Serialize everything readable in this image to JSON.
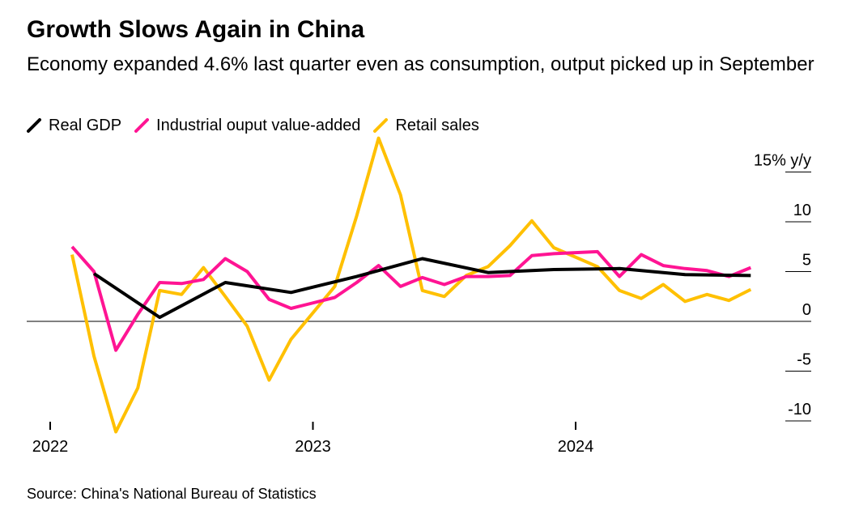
{
  "title": "Growth Slows Again in China",
  "subtitle": "Economy expanded 4.6% last quarter even as consumption, output picked up in September",
  "source": "Source: China's National Bureau of Statistics",
  "colors": {
    "real_gdp": "#000000",
    "industrial": "#ff1493",
    "retail": "#ffc000",
    "axis": "#000000"
  },
  "chart_data": {
    "type": "line",
    "ylim": [
      -10,
      15
    ],
    "ytick_labels": [
      "15% y/y",
      "10",
      "5",
      "0",
      "-5",
      "-10"
    ],
    "xtick_labels": [
      "2022",
      "2023",
      "2024"
    ],
    "grid": false,
    "legend_position": "top-left",
    "series": [
      {
        "name": "Real GDP",
        "color": "#000000",
        "x": [
          "2022-03",
          "2022-06",
          "2022-09",
          "2022-12",
          "2023-03",
          "2023-06",
          "2023-09",
          "2023-12",
          "2024-03",
          "2024-06",
          "2024-09"
        ],
        "values": [
          4.8,
          0.4,
          3.9,
          2.9,
          4.5,
          6.3,
          4.9,
          5.2,
          5.3,
          4.7,
          4.6
        ]
      },
      {
        "name": "Industrial ouput value-added",
        "color": "#ff1493",
        "x": [
          "2022-02",
          "2022-03",
          "2022-04",
          "2022-05",
          "2022-06",
          "2022-07",
          "2022-08",
          "2022-09",
          "2022-10",
          "2022-11",
          "2022-12",
          "2023-02",
          "2023-03",
          "2023-04",
          "2023-05",
          "2023-06",
          "2023-07",
          "2023-08",
          "2023-09",
          "2023-10",
          "2023-11",
          "2023-12",
          "2024-02",
          "2024-03",
          "2024-04",
          "2024-05",
          "2024-06",
          "2024-07",
          "2024-08",
          "2024-09"
        ],
        "values": [
          7.5,
          5.0,
          -2.9,
          0.7,
          3.9,
          3.8,
          4.2,
          6.3,
          5.0,
          2.2,
          1.3,
          2.4,
          3.9,
          5.6,
          3.5,
          4.4,
          3.7,
          4.5,
          4.5,
          4.6,
          6.6,
          6.8,
          7.0,
          4.5,
          6.7,
          5.6,
          5.3,
          5.1,
          4.5,
          5.4
        ]
      },
      {
        "name": "Retail sales",
        "color": "#ffc000",
        "x": [
          "2022-02",
          "2022-03",
          "2022-04",
          "2022-05",
          "2022-06",
          "2022-07",
          "2022-08",
          "2022-09",
          "2022-10",
          "2022-11",
          "2022-12",
          "2023-02",
          "2023-03",
          "2023-04",
          "2023-05",
          "2023-06",
          "2023-07",
          "2023-08",
          "2023-09",
          "2023-10",
          "2023-11",
          "2023-12",
          "2024-02",
          "2024-03",
          "2024-04",
          "2024-05",
          "2024-06",
          "2024-07",
          "2024-08",
          "2024-09"
        ],
        "values": [
          6.7,
          -3.5,
          -11.1,
          -6.7,
          3.1,
          2.7,
          5.4,
          2.5,
          -0.5,
          -5.9,
          -1.8,
          3.5,
          10.6,
          18.4,
          12.7,
          3.1,
          2.5,
          4.6,
          5.5,
          7.6,
          10.1,
          7.4,
          5.5,
          3.1,
          2.3,
          3.7,
          2.0,
          2.7,
          2.1,
          3.2
        ]
      }
    ]
  }
}
